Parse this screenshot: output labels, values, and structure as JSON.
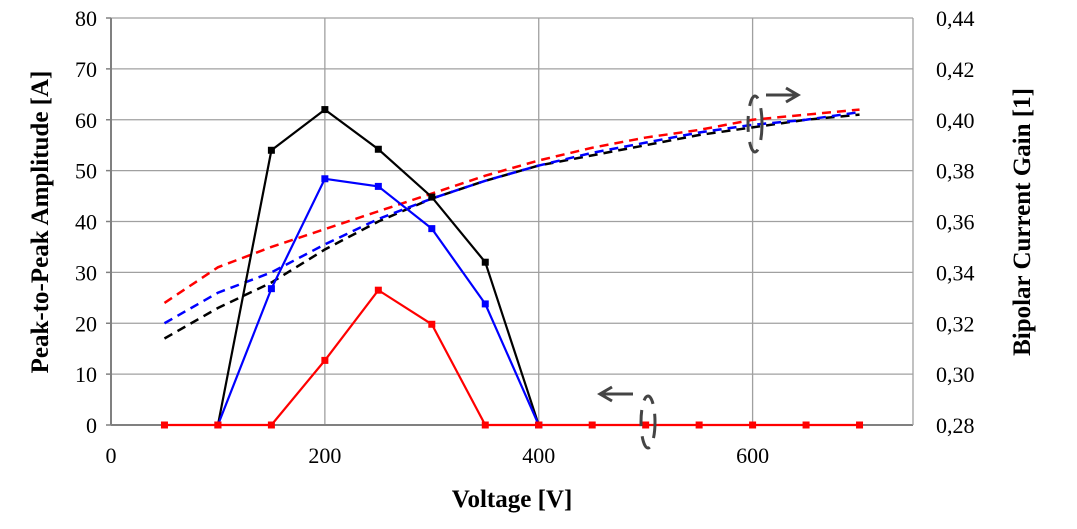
{
  "chart_data": {
    "type": "line",
    "xlabel": "Voltage [V]",
    "ylabel": "Peak-to-Peak Amplitude  [A]",
    "y2label": "Bipolar Current Gain [1]",
    "xlim": [
      0,
      750
    ],
    "ylim": [
      0,
      80
    ],
    "y2lim": [
      0.28,
      0.44
    ],
    "xticks": [
      "0",
      "200",
      "400",
      "600"
    ],
    "yticks": [
      "0",
      "10",
      "20",
      "30",
      "40",
      "50",
      "60",
      "70",
      "80"
    ],
    "y2ticks": [
      "0,28",
      "0,30",
      "0,32",
      "0,34",
      "0,36",
      "0,38",
      "0,40",
      "0,42",
      "0,44"
    ],
    "grid": true,
    "x": [
      50,
      100,
      150,
      200,
      250,
      300,
      350,
      400,
      450,
      500,
      550,
      600,
      650,
      700
    ],
    "series": [
      {
        "axis": "left",
        "style": "solid",
        "color": "#000000",
        "values": [
          0,
          0,
          54,
          62,
          54.2,
          44.8,
          32,
          0,
          0,
          0,
          0,
          0,
          0,
          0
        ]
      },
      {
        "axis": "left",
        "style": "solid",
        "color": "#0000ff",
        "values": [
          0,
          0,
          26.8,
          48.4,
          46.9,
          38.6,
          23.8,
          0,
          0,
          0,
          0,
          0,
          0,
          0
        ]
      },
      {
        "axis": "left",
        "style": "solid",
        "color": "#ff0000",
        "values": [
          0,
          0,
          0,
          12.7,
          26.5,
          19.8,
          0,
          0,
          0,
          0,
          0,
          0,
          0,
          0
        ]
      },
      {
        "axis": "right",
        "style": "dashed",
        "color": "#000000",
        "values": [
          0.314,
          0.326,
          0.336,
          0.349,
          0.36,
          0.369,
          0.376,
          0.382,
          0.386,
          0.39,
          0.394,
          0.397,
          0.4,
          0.402
        ]
      },
      {
        "axis": "right",
        "style": "dashed",
        "color": "#0000ff",
        "values": [
          0.32,
          0.332,
          0.34,
          0.351,
          0.361,
          0.369,
          0.376,
          0.382,
          0.387,
          0.391,
          0.395,
          0.398,
          0.4,
          0.403
        ]
      },
      {
        "axis": "right",
        "style": "dashed",
        "color": "#ff0000",
        "values": [
          0.328,
          0.342,
          0.35,
          0.357,
          0.364,
          0.371,
          0.378,
          0.384,
          0.389,
          0.393,
          0.396,
          0.4,
          0.402,
          0.404
        ]
      }
    ],
    "annotations": [
      {
        "type": "ellipse-arrow",
        "direction": "right",
        "meaning": "dashed curves read on right axis"
      },
      {
        "type": "ellipse-arrow",
        "direction": "left",
        "meaning": "solid curves read on left axis"
      }
    ]
  }
}
